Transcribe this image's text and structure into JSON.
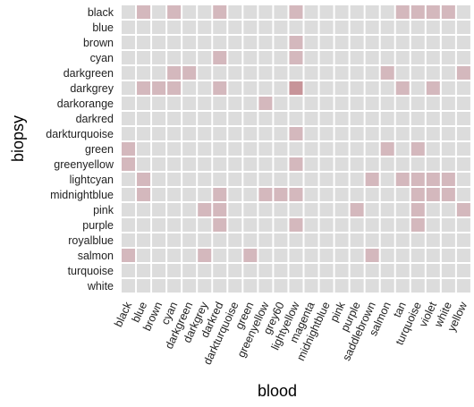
{
  "chart_data": {
    "type": "heatmap",
    "title": "",
    "xlabel": "blood",
    "ylabel": "biopsy",
    "x_categories": [
      "black",
      "blue",
      "brown",
      "cyan",
      "darkgreen",
      "darkgrey",
      "darkred",
      "darkturquoise",
      "green",
      "greenyellow",
      "grey60",
      "lightyellow",
      "magenta",
      "midnightblue",
      "pink",
      "purple",
      "saddlebrown",
      "salmon",
      "tan",
      "turquoise",
      "violet",
      "white",
      "yellow"
    ],
    "y_categories": [
      "black",
      "blue",
      "brown",
      "cyan",
      "darkgreen",
      "darkgrey",
      "darkorange",
      "darkred",
      "darkturquoise",
      "green",
      "greenyellow",
      "lightcyan",
      "midnightblue",
      "pink",
      "purple",
      "royalblue",
      "salmon",
      "turquoise",
      "white"
    ],
    "values": [
      [
        0,
        1,
        0,
        1,
        0,
        0,
        1,
        0,
        0,
        0,
        0,
        1,
        0,
        0,
        0,
        0,
        0,
        0,
        1,
        1,
        1,
        1,
        0
      ],
      [
        0,
        0,
        0,
        0,
        0,
        0,
        0,
        0,
        0,
        0,
        0,
        0,
        0,
        0,
        0,
        0,
        0,
        0,
        0,
        0,
        0,
        0,
        0
      ],
      [
        0,
        0,
        0,
        0,
        0,
        0,
        0,
        0,
        0,
        0,
        0,
        1,
        0,
        0,
        0,
        0,
        0,
        0,
        0,
        0,
        0,
        0,
        0
      ],
      [
        0,
        0,
        0,
        0,
        0,
        0,
        1,
        0,
        0,
        0,
        0,
        1,
        0,
        0,
        0,
        0,
        0,
        0,
        0,
        0,
        0,
        0,
        0
      ],
      [
        0,
        0,
        0,
        1,
        1,
        0,
        0,
        0,
        0,
        0,
        0,
        0,
        0,
        0,
        0,
        0,
        0,
        1,
        0,
        0,
        0,
        0,
        1
      ],
      [
        0,
        1,
        1,
        1,
        0,
        0,
        1,
        0,
        0,
        0,
        0,
        2,
        0,
        0,
        0,
        0,
        0,
        0,
        1,
        0,
        1,
        0,
        0
      ],
      [
        0,
        0,
        0,
        0,
        0,
        0,
        0,
        0,
        0,
        1,
        0,
        0,
        0,
        0,
        0,
        0,
        0,
        0,
        0,
        0,
        0,
        0,
        0
      ],
      [
        0,
        0,
        0,
        0,
        0,
        0,
        0,
        0,
        0,
        0,
        0,
        0,
        0,
        0,
        0,
        0,
        0,
        0,
        0,
        0,
        0,
        0,
        0
      ],
      [
        0,
        0,
        0,
        0,
        0,
        0,
        0,
        0,
        0,
        0,
        0,
        1,
        0,
        0,
        0,
        0,
        0,
        0,
        0,
        0,
        0,
        0,
        0
      ],
      [
        1,
        0,
        0,
        0,
        0,
        0,
        0,
        0,
        0,
        0,
        0,
        0,
        0,
        0,
        0,
        0,
        0,
        1,
        0,
        1,
        0,
        0,
        0
      ],
      [
        1,
        0,
        0,
        0,
        0,
        0,
        0,
        0,
        0,
        0,
        0,
        1,
        0,
        0,
        0,
        0,
        0,
        0,
        0,
        0,
        0,
        0,
        0
      ],
      [
        0,
        1,
        0,
        0,
        0,
        0,
        0,
        0,
        0,
        0,
        0,
        0,
        0,
        0,
        0,
        0,
        1,
        0,
        1,
        1,
        1,
        1,
        0
      ],
      [
        0,
        1,
        0,
        0,
        0,
        0,
        1,
        0,
        0,
        1,
        1,
        1,
        0,
        0,
        0,
        0,
        0,
        0,
        0,
        1,
        1,
        1,
        0
      ],
      [
        0,
        0,
        0,
        0,
        0,
        1,
        1,
        0,
        0,
        0,
        0,
        0,
        0,
        0,
        0,
        1,
        0,
        0,
        0,
        1,
        0,
        0,
        1
      ],
      [
        0,
        0,
        0,
        0,
        0,
        0,
        1,
        0,
        0,
        0,
        0,
        1,
        0,
        0,
        0,
        0,
        0,
        0,
        0,
        1,
        0,
        0,
        0
      ],
      [
        0,
        0,
        0,
        0,
        0,
        0,
        0,
        0,
        0,
        0,
        0,
        0,
        0,
        0,
        0,
        0,
        0,
        0,
        0,
        0,
        0,
        0,
        0
      ],
      [
        1,
        0,
        0,
        0,
        0,
        1,
        0,
        0,
        1,
        0,
        0,
        0,
        0,
        0,
        0,
        0,
        1,
        0,
        0,
        0,
        0,
        0,
        0
      ],
      [
        0,
        0,
        0,
        0,
        0,
        0,
        0,
        0,
        0,
        0,
        0,
        0,
        0,
        0,
        0,
        0,
        0,
        0,
        0,
        0,
        0,
        0,
        0
      ],
      [
        0,
        0,
        0,
        0,
        0,
        0,
        0,
        0,
        0,
        0,
        0,
        0,
        0,
        0,
        0,
        0,
        0,
        0,
        0,
        0,
        0,
        0,
        0
      ]
    ],
    "color_scale": {
      "0": "#dcdcdc",
      "1": "#d4b8bd",
      "2": "#c79499"
    },
    "grid_color": "#ffffff",
    "legend": "none"
  }
}
